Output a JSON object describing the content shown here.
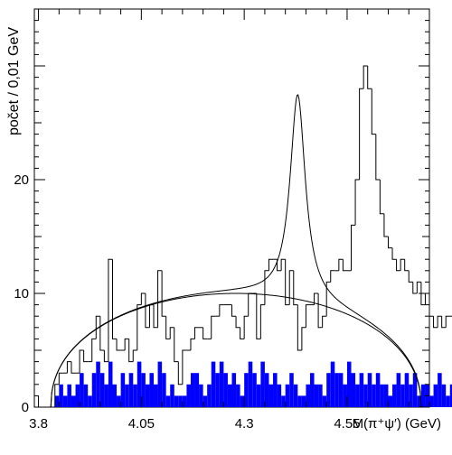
{
  "chart_data": {
    "type": "histogram",
    "xlabel": "M(π⁺ψ′) (GeV)",
    "ylabel": "počet / 0,01 GeV",
    "xlim": [
      3.79,
      4.75
    ],
    "ylim": [
      0,
      35
    ],
    "xticks": [
      3.8,
      4.05,
      4.3,
      4.55
    ],
    "yticks": [
      0,
      10,
      20
    ],
    "bin_width": 0.01,
    "bin_start": 3.84,
    "grid": false,
    "series": [
      {
        "values": [
          2,
          3,
          3,
          4,
          3,
          3,
          5,
          4,
          4,
          6,
          8,
          5,
          4,
          13,
          6,
          5,
          5,
          6,
          4,
          5,
          9,
          10,
          7,
          9,
          7,
          12,
          8,
          6,
          7,
          4,
          2,
          5,
          5,
          6,
          7,
          7,
          6,
          6,
          8,
          8,
          9,
          9,
          9,
          8,
          7,
          6,
          8,
          10,
          10,
          6,
          9,
          12,
          13,
          13,
          12,
          13,
          9,
          12,
          9,
          5,
          7,
          9,
          9,
          10,
          7,
          8,
          11,
          12,
          12,
          13,
          12,
          12,
          16,
          20,
          28,
          30,
          28,
          24,
          20,
          17,
          15,
          14,
          13,
          12,
          13,
          12,
          11,
          10,
          11,
          9,
          10,
          8,
          7,
          8,
          7,
          8,
          8,
          5,
          5,
          6,
          4,
          5,
          3,
          2,
          0,
          0,
          0,
          0
        ],
        "style": "outline"
      },
      {
        "values": [
          1,
          2,
          1,
          2,
          1,
          2,
          3,
          2,
          1,
          3,
          4,
          3,
          2,
          4,
          2,
          1,
          3,
          2,
          3,
          2,
          4,
          3,
          2,
          3,
          2,
          4,
          3,
          1,
          2,
          1,
          1,
          1,
          2,
          3,
          3,
          2,
          1,
          2,
          4,
          3,
          4,
          3,
          2,
          3,
          2,
          1,
          3,
          4,
          3,
          2,
          4,
          3,
          2,
          3,
          2,
          1,
          2,
          3,
          2,
          1,
          1,
          2,
          3,
          2,
          2,
          1,
          3,
          4,
          3,
          3,
          2,
          4,
          3,
          2,
          3,
          2,
          3,
          2,
          3,
          2,
          2,
          1,
          2,
          3,
          2,
          3,
          2,
          3,
          1,
          2,
          2,
          1,
          2,
          3,
          2,
          1,
          2,
          1,
          1,
          0,
          0,
          0,
          0,
          0,
          0,
          0,
          0
        ],
        "style": "filled",
        "color": "#0000ff"
      }
    ],
    "fit_curves": [
      {
        "kind": "background",
        "x0": 3.83,
        "x1": 4.73,
        "peak": 10,
        "mid": 4.35
      },
      {
        "kind": "signal_plus_background",
        "mass": 4.43,
        "width": 0.045,
        "amplitude": 18
      }
    ]
  }
}
